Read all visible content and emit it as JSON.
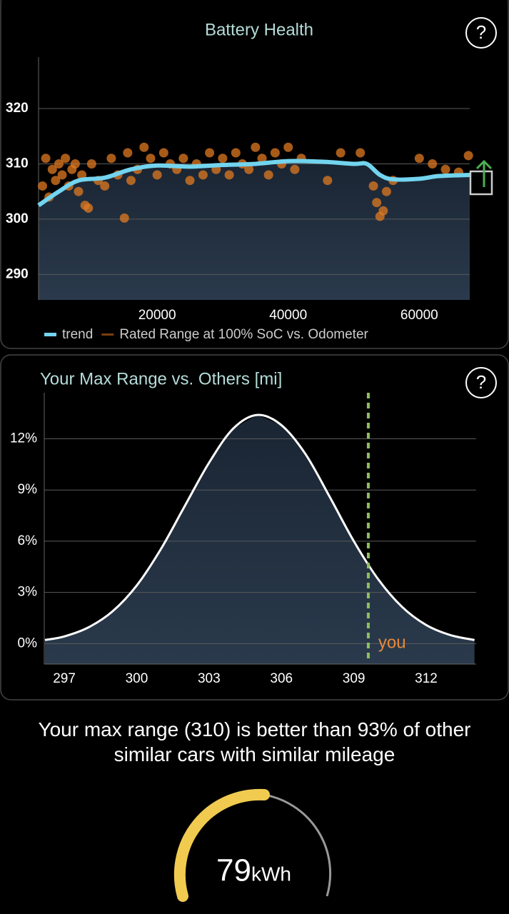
{
  "chart_data": [
    {
      "type": "scatter",
      "title": "Battery Health",
      "xlim": [
        1900,
        67700
      ],
      "xticks": [
        20000,
        40000,
        60000
      ],
      "ylim": [
        285.4,
        329.3
      ],
      "yticks": [
        290,
        300,
        310,
        320
      ],
      "grid": true,
      "series": [
        {
          "name": "trend",
          "color": "#72d4ee",
          "kind": "line",
          "x": [
            1900,
            5000,
            8000,
            12000,
            16000,
            20000,
            25000,
            30000,
            35000,
            40000,
            45000,
            50000,
            52000,
            54000,
            56000,
            60000,
            63000,
            67700
          ],
          "values": [
            302.5,
            305,
            307,
            307.5,
            309,
            309.7,
            309.5,
            309.8,
            310,
            310.5,
            310.4,
            310,
            310,
            308,
            307.2,
            307.3,
            307.8,
            308
          ]
        },
        {
          "name": "Rated Range at 100% SoC vs. Odometer",
          "color": "#e07a20",
          "kind": "points",
          "x": [
            2500,
            3000,
            3500,
            4000,
            4500,
            5000,
            5500,
            6000,
            6500,
            7000,
            7500,
            8000,
            8500,
            9000,
            9500,
            10000,
            11000,
            12000,
            13000,
            14000,
            15000,
            15500,
            16000,
            17000,
            18000,
            19000,
            20000,
            21000,
            22000,
            23000,
            24000,
            25000,
            26000,
            27000,
            28000,
            29000,
            30000,
            31000,
            32000,
            33000,
            34000,
            35000,
            36000,
            37000,
            38000,
            39000,
            40000,
            41000,
            42000,
            46000,
            48000,
            51000,
            53000,
            53500,
            54000,
            54500,
            55000,
            56000,
            60000,
            62000,
            64000,
            66000,
            67500
          ],
          "values": [
            306,
            311,
            304,
            309,
            307,
            310,
            308,
            311,
            306,
            309,
            310,
            305,
            308,
            302.5,
            302,
            310,
            307,
            306,
            311,
            308,
            300.2,
            312,
            307,
            309,
            313,
            311,
            308,
            312,
            310,
            309,
            311,
            307,
            310,
            308,
            312,
            309,
            311,
            308,
            312,
            310,
            309,
            313,
            311,
            308,
            312,
            310,
            313,
            309,
            311,
            307,
            312,
            312,
            306,
            303,
            300.5,
            301.5,
            305,
            307,
            311,
            310,
            309,
            308.5,
            311.5
          ]
        }
      ]
    },
    {
      "type": "area",
      "title": "Your Max Range vs. Others [mi]",
      "xlim": [
        296.17,
        314.07
      ],
      "xticks": [
        297,
        300,
        303,
        306,
        309,
        312
      ],
      "ylim": [
        -1.2,
        14.7
      ],
      "yticks": [
        {
          "value": 0,
          "label": "0%"
        },
        {
          "value": 3,
          "label": "3%"
        },
        {
          "value": 6,
          "label": "6%"
        },
        {
          "value": 9,
          "label": "9%"
        },
        {
          "value": 12,
          "label": "12%"
        }
      ],
      "grid": true,
      "series": [
        {
          "color": "#ffffff",
          "x": [
            296.2,
            297,
            298,
            299,
            300,
            301,
            302,
            303,
            304,
            305,
            306,
            307,
            308,
            309,
            310,
            311,
            312,
            313,
            314
          ],
          "values": [
            0.21,
            0.42,
            0.95,
            1.89,
            3.4,
            5.53,
            8.08,
            10.6,
            12.6,
            13.4,
            12.8,
            11.1,
            8.6,
            6.0,
            3.79,
            2.15,
            1.09,
            0.5,
            0.21
          ]
        }
      ],
      "annotations": [
        {
          "x": 309.6,
          "label": "you",
          "color": "#8fc060",
          "label_color": "#e8883a"
        }
      ]
    }
  ],
  "help_icon": "?",
  "summary": "Your max range (310) is better than 93% of other similar cars with similar mileage",
  "gauge": {
    "value": 79,
    "unit": "kWh"
  }
}
